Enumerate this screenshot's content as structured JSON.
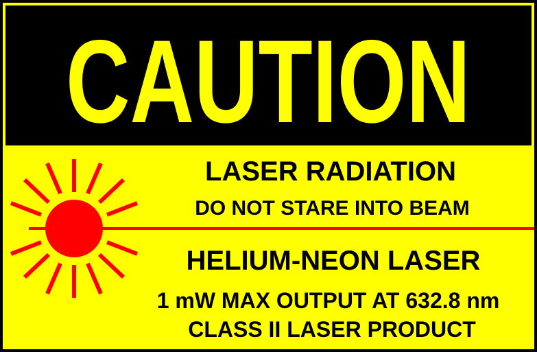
{
  "sign": {
    "header": "CAUTION",
    "line1": "LASER RADIATION",
    "line2": "DO NOT STARE INTO BEAM",
    "line3": "HELIUM-NEON LASER",
    "line4": "1 mW MAX OUTPUT AT 632.8 nm",
    "line5": "CLASS II LASER PRODUCT"
  },
  "colors": {
    "background": "#ffff00",
    "header_band": "#000000",
    "header_text": "#ffff00",
    "laser": "#ff0000",
    "text": "#000000"
  },
  "icons": [
    "laser-starburst-icon",
    "laser-beam-line"
  ]
}
